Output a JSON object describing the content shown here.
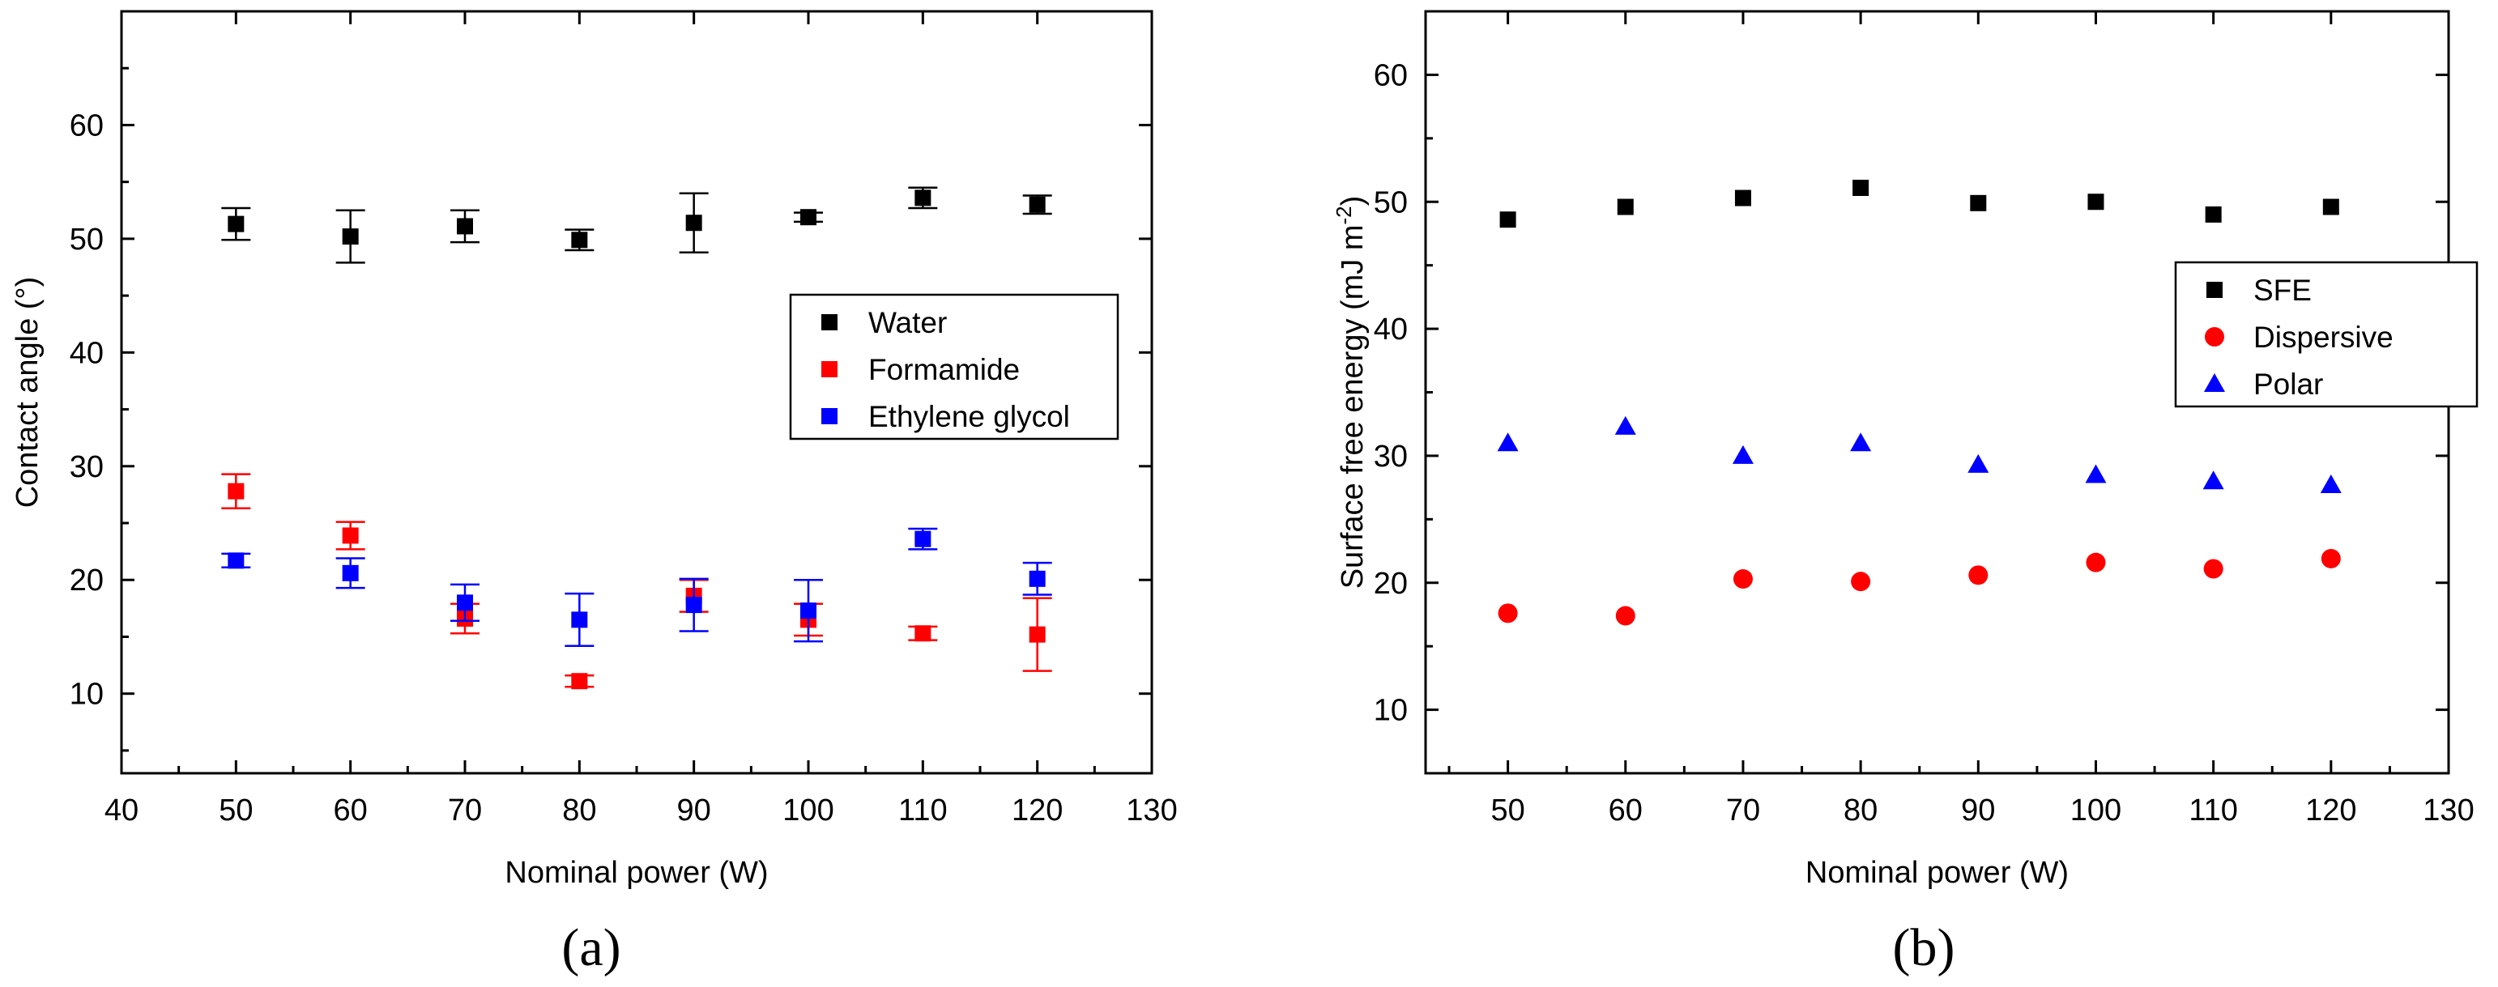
{
  "chart_data": [
    {
      "panel": "(a)",
      "type": "scatter",
      "xlabel": "Nominal power (W)",
      "ylabel": "Contact angle (°)",
      "xlim": [
        40,
        130
      ],
      "ylim": [
        3,
        70
      ],
      "xticks": [
        40,
        50,
        60,
        70,
        80,
        90,
        100,
        110,
        120,
        130
      ],
      "yticks": [
        10,
        20,
        30,
        40,
        50,
        60
      ],
      "x": [
        50,
        60,
        70,
        80,
        90,
        100,
        110,
        120
      ],
      "legend": "right-middle",
      "series": [
        {
          "name": "Water",
          "color": "#000000",
          "marker": "square",
          "values": [
            51.3,
            50.2,
            51.1,
            49.9,
            51.4,
            51.9,
            53.6,
            53.0
          ],
          "errors": [
            1.4,
            2.3,
            1.4,
            0.9,
            2.6,
            0.4,
            0.9,
            0.8
          ]
        },
        {
          "name": "Formamide",
          "color": "#ff0000",
          "marker": "square",
          "values": [
            27.8,
            23.9,
            16.6,
            11.1,
            18.6,
            16.5,
            15.3,
            15.2
          ],
          "errors": [
            1.5,
            1.2,
            1.3,
            0.5,
            1.4,
            1.4,
            0.6,
            3.2
          ]
        },
        {
          "name": "Ethylene glycol",
          "color": "#0000ff",
          "marker": "square",
          "values": [
            21.7,
            20.6,
            18.0,
            16.5,
            17.8,
            17.3,
            23.6,
            20.1
          ],
          "errors": [
            0.6,
            1.3,
            1.6,
            2.3,
            2.3,
            2.7,
            0.9,
            1.4
          ]
        }
      ]
    },
    {
      "panel": "(b)",
      "type": "scatter",
      "xlabel": "Nominal power (W)",
      "ylabel_main": "Surface free energy (mJ m",
      "ylabel_sup": "-2",
      "ylabel_end": ")",
      "xlim": [
        43,
        130
      ],
      "ylim": [
        5,
        65
      ],
      "xticks": [
        50,
        60,
        70,
        80,
        90,
        100,
        110,
        120,
        130
      ],
      "yticks": [
        10,
        20,
        30,
        40,
        50,
        60
      ],
      "x": [
        50,
        60,
        70,
        80,
        90,
        100,
        110,
        120
      ],
      "legend": "right-middle",
      "series": [
        {
          "name": "SFE",
          "color": "#000000",
          "marker": "square",
          "values": [
            48.6,
            49.6,
            50.3,
            51.1,
            49.9,
            50.0,
            49.0,
            49.6
          ]
        },
        {
          "name": "Dispersive",
          "color": "#ff0000",
          "marker": "circle",
          "values": [
            17.6,
            17.4,
            20.3,
            20.1,
            20.6,
            21.6,
            21.1,
            21.9
          ]
        },
        {
          "name": "Polar",
          "color": "#0000ff",
          "marker": "triangle",
          "values": [
            31.0,
            32.3,
            30.0,
            31.0,
            29.3,
            28.5,
            28.0,
            27.7
          ]
        }
      ]
    }
  ]
}
